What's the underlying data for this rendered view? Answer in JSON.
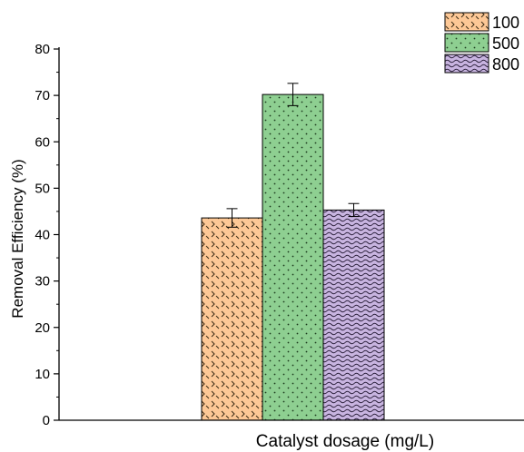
{
  "chart_data": {
    "type": "bar",
    "categories": [
      ""
    ],
    "series": [
      {
        "name": "100",
        "values": [
          43.6
        ],
        "error": [
          2.0
        ],
        "color": "#fdc896",
        "pattern": "chevron"
      },
      {
        "name": "500",
        "values": [
          70.2
        ],
        "error": [
          2.4
        ],
        "color": "#8ecf91",
        "pattern": "dots"
      },
      {
        "name": "800",
        "values": [
          45.3
        ],
        "error": [
          1.4
        ],
        "color": "#c8b4e0",
        "pattern": "wave"
      }
    ],
    "xlabel": "Catalyst dosage (mg/L)",
    "ylabel": "Removal Efficiency (%)",
    "ylim": [
      0,
      80
    ],
    "yticks": [
      0,
      10,
      20,
      30,
      40,
      50,
      60,
      70,
      80
    ],
    "legend": "top-right",
    "grid": false
  }
}
